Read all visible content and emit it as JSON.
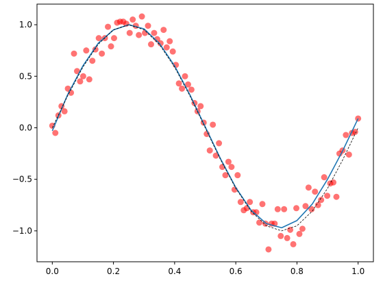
{
  "chart_data": {
    "type": "scatter",
    "title": "",
    "xlabel": "",
    "ylabel": "",
    "xlim": [
      -0.05,
      1.05
    ],
    "ylim": [
      -1.3,
      1.2
    ],
    "grid": false,
    "x_ticks": [
      {
        "value": 0.0,
        "label": "0.0"
      },
      {
        "value": 0.2,
        "label": "0.2"
      },
      {
        "value": 0.4,
        "label": "0.4"
      },
      {
        "value": 0.6,
        "label": "0.6"
      },
      {
        "value": 0.8,
        "label": "0.8"
      },
      {
        "value": 1.0,
        "label": "1.0"
      }
    ],
    "y_ticks": [
      {
        "value": -1.0,
        "label": "−1.0"
      },
      {
        "value": -0.5,
        "label": "−0.5"
      },
      {
        "value": 0.0,
        "label": "0.0"
      },
      {
        "value": 0.5,
        "label": "0.5"
      },
      {
        "value": 1.0,
        "label": "1.0"
      }
    ],
    "scatter": {
      "color": "#ff0000",
      "opacity": 0.55,
      "points": [
        [
          0.0,
          0.02
        ],
        [
          0.01,
          -0.05
        ],
        [
          0.02,
          0.12
        ],
        [
          0.03,
          0.21
        ],
        [
          0.04,
          0.16
        ],
        [
          0.051,
          0.38
        ],
        [
          0.061,
          0.34
        ],
        [
          0.071,
          0.72
        ],
        [
          0.081,
          0.55
        ],
        [
          0.091,
          0.45
        ],
        [
          0.101,
          0.5
        ],
        [
          0.111,
          0.75
        ],
        [
          0.121,
          0.47
        ],
        [
          0.131,
          0.65
        ],
        [
          0.141,
          0.76
        ],
        [
          0.152,
          0.87
        ],
        [
          0.162,
          0.72
        ],
        [
          0.172,
          0.87
        ],
        [
          0.182,
          0.98
        ],
        [
          0.192,
          0.79
        ],
        [
          0.202,
          0.87
        ],
        [
          0.212,
          1.02
        ],
        [
          0.222,
          1.03
        ],
        [
          0.232,
          1.03
        ],
        [
          0.242,
          1.01
        ],
        [
          0.253,
          0.92
        ],
        [
          0.263,
          1.05
        ],
        [
          0.273,
          0.99
        ],
        [
          0.283,
          0.9
        ],
        [
          0.293,
          1.08
        ],
        [
          0.303,
          0.92
        ],
        [
          0.313,
          0.99
        ],
        [
          0.323,
          0.81
        ],
        [
          0.333,
          0.92
        ],
        [
          0.343,
          0.86
        ],
        [
          0.354,
          0.82
        ],
        [
          0.364,
          0.95
        ],
        [
          0.374,
          0.78
        ],
        [
          0.384,
          0.84
        ],
        [
          0.394,
          0.74
        ],
        [
          0.404,
          0.61
        ],
        [
          0.414,
          0.43
        ],
        [
          0.424,
          0.38
        ],
        [
          0.434,
          0.5
        ],
        [
          0.444,
          0.42
        ],
        [
          0.455,
          0.37
        ],
        [
          0.465,
          0.24
        ],
        [
          0.475,
          0.16
        ],
        [
          0.485,
          0.21
        ],
        [
          0.495,
          0.05
        ],
        [
          0.505,
          -0.06
        ],
        [
          0.515,
          -0.22
        ],
        [
          0.525,
          0.03
        ],
        [
          0.535,
          -0.27
        ],
        [
          0.545,
          -0.15
        ],
        [
          0.556,
          -0.38
        ],
        [
          0.566,
          -0.46
        ],
        [
          0.576,
          -0.33
        ],
        [
          0.586,
          -0.38
        ],
        [
          0.596,
          -0.6
        ],
        [
          0.606,
          -0.46
        ],
        [
          0.616,
          -0.72
        ],
        [
          0.626,
          -0.8
        ],
        [
          0.636,
          -0.78
        ],
        [
          0.646,
          -0.72
        ],
        [
          0.657,
          -0.82
        ],
        [
          0.667,
          -0.82
        ],
        [
          0.677,
          -0.92
        ],
        [
          0.687,
          -0.74
        ],
        [
          0.697,
          -0.93
        ],
        [
          0.707,
          -1.18
        ],
        [
          0.717,
          -0.93
        ],
        [
          0.727,
          -0.93
        ],
        [
          0.737,
          -0.79
        ],
        [
          0.747,
          -1.05
        ],
        [
          0.758,
          -0.79
        ],
        [
          0.768,
          -1.07
        ],
        [
          0.778,
          -0.99
        ],
        [
          0.788,
          -1.13
        ],
        [
          0.798,
          -0.78
        ],
        [
          0.808,
          -1.03
        ],
        [
          0.818,
          -0.98
        ],
        [
          0.828,
          -0.76
        ],
        [
          0.838,
          -0.58
        ],
        [
          0.848,
          -0.79
        ],
        [
          0.859,
          -0.62
        ],
        [
          0.869,
          -0.75
        ],
        [
          0.879,
          -0.7
        ],
        [
          0.889,
          -0.48
        ],
        [
          0.899,
          -0.66
        ],
        [
          0.909,
          -0.54
        ],
        [
          0.919,
          -0.53
        ],
        [
          0.929,
          -0.67
        ],
        [
          0.939,
          -0.25
        ],
        [
          0.949,
          -0.22
        ],
        [
          0.96,
          -0.07
        ],
        [
          0.97,
          -0.26
        ],
        [
          0.98,
          -0.05
        ],
        [
          0.99,
          -0.04
        ],
        [
          1.0,
          0.09
        ]
      ]
    },
    "lines": [
      {
        "style": "solid",
        "color": "#1f77b4",
        "x": [
          0.0,
          0.05,
          0.1,
          0.15,
          0.2,
          0.25,
          0.3,
          0.35,
          0.4,
          0.45,
          0.5,
          0.55,
          0.6,
          0.65,
          0.7,
          0.75,
          0.8,
          0.85,
          0.9,
          0.95,
          1.0
        ],
        "y": [
          -0.03,
          0.32,
          0.6,
          0.82,
          0.95,
          1.0,
          0.96,
          0.82,
          0.6,
          0.32,
          0.01,
          -0.3,
          -0.58,
          -0.8,
          -0.93,
          -0.97,
          -0.9,
          -0.74,
          -0.5,
          -0.22,
          0.09
        ]
      },
      {
        "style": "dashed",
        "color": "#000000",
        "x": [
          0.0,
          0.05,
          0.1,
          0.15,
          0.2,
          0.25,
          0.3,
          0.35,
          0.4,
          0.45,
          0.5,
          0.55,
          0.6,
          0.65,
          0.7,
          0.75,
          0.8,
          0.85,
          0.9,
          0.95,
          1.0
        ],
        "y": [
          0.0,
          0.309,
          0.588,
          0.809,
          0.951,
          1.0,
          0.951,
          0.809,
          0.588,
          0.309,
          0.0,
          -0.309,
          -0.588,
          -0.809,
          -0.951,
          -1.0,
          -0.951,
          -0.809,
          -0.588,
          -0.309,
          0.0
        ]
      }
    ]
  }
}
